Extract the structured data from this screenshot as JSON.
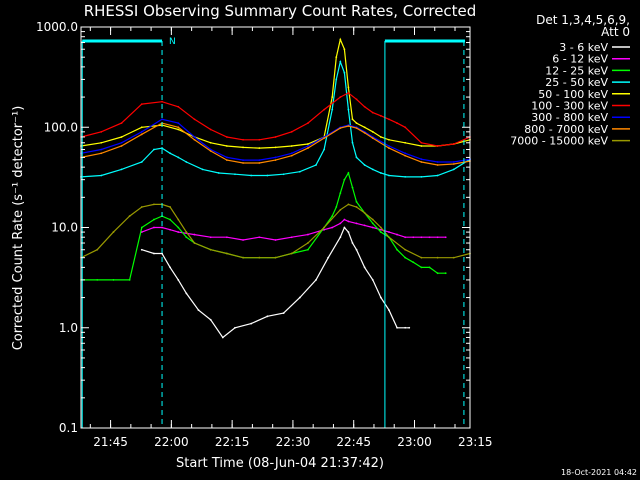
{
  "chart_data": {
    "type": "line",
    "title": "RHESSI Observing Summary Count Rates, Corrected",
    "xlabel": "Start Time (08-Jun-04 21:37:42)",
    "ylabel": "Corrected Count Rate (s⁻¹ detector⁻¹)",
    "y_scale": "log",
    "ylim": [
      0.1,
      1000.0
    ],
    "xlim_minutes": [
      0,
      96
    ],
    "x_ticks": [
      {
        "label": "21:45",
        "value": 7.3
      },
      {
        "label": "22:00",
        "value": 22.3
      },
      {
        "label": "22:15",
        "value": 37.3
      },
      {
        "label": "22:30",
        "value": 52.3
      },
      {
        "label": "22:45",
        "value": 67.3
      },
      {
        "label": "23:00",
        "value": 82.3
      },
      {
        "label": "23:15",
        "value": 97.3
      }
    ],
    "y_ticks": [
      {
        "label": "0.1",
        "value": 0.1
      },
      {
        "label": "1.0",
        "value": 1.0
      },
      {
        "label": "10.0",
        "value": 10.0
      },
      {
        "label": "100.0",
        "value": 100.0
      },
      {
        "label": "1000.0",
        "value": 1000.0
      }
    ],
    "legend_header": [
      "Det 1,3,4,5,6,9,",
      "Att 0"
    ],
    "night_marker": "N",
    "night_interval_minutes": [
      20,
      96
    ],
    "series": [
      {
        "name": "3 - 6 keV",
        "color": "#ffffff",
        "x": [
          15,
          18,
          20,
          22,
          24,
          26,
          29,
          32,
          35,
          38,
          42,
          46,
          50,
          54,
          58,
          61,
          64,
          65,
          66,
          67,
          68,
          70,
          72,
          74,
          76,
          78,
          80,
          81
        ],
        "y": [
          6,
          5.5,
          5.5,
          4,
          3,
          2.2,
          1.5,
          1.2,
          0.8,
          1.0,
          1.1,
          1.3,
          1.4,
          2,
          3,
          5,
          8,
          10,
          9,
          7,
          6,
          4,
          3,
          2,
          1.5,
          1,
          1,
          1
        ]
      },
      {
        "name": "6 - 12 keV",
        "color": "#ff00ff",
        "x": [
          15,
          18,
          20,
          22,
          24,
          28,
          32,
          36,
          40,
          44,
          48,
          52,
          56,
          60,
          62,
          64,
          65,
          66,
          68,
          70,
          72,
          74,
          76,
          78,
          80,
          82,
          84,
          86,
          88,
          90
        ],
        "y": [
          9,
          10,
          10,
          9.5,
          9,
          8.5,
          8,
          8,
          7.5,
          8,
          7.5,
          8,
          8.5,
          9.5,
          10,
          11,
          12,
          11.5,
          11,
          10.5,
          10,
          9.5,
          9,
          8.5,
          8,
          8,
          8,
          8,
          8,
          8
        ]
      },
      {
        "name": "12 - 25 keV",
        "color": "#00ff00",
        "x": [
          0,
          4,
          8,
          12,
          15,
          18,
          20,
          22,
          24,
          26,
          28,
          32,
          36,
          40,
          44,
          48,
          52,
          56,
          60,
          62,
          63,
          64,
          65,
          66,
          67,
          68,
          70,
          72,
          74,
          76,
          78,
          80,
          82,
          84,
          86,
          88,
          90
        ],
        "y": [
          3,
          3,
          3,
          3,
          10,
          12,
          13,
          12,
          10,
          8,
          7,
          6,
          5.5,
          5,
          5,
          5,
          5.5,
          6,
          10,
          13,
          16,
          22,
          30,
          35,
          25,
          18,
          14,
          11,
          9,
          8,
          6,
          5,
          4.5,
          4,
          4,
          3.5,
          3.5
        ]
      },
      {
        "name": "25 - 50 keV",
        "color": "#00ffff",
        "x": [
          0,
          5,
          10,
          15,
          18,
          20,
          22,
          24,
          26,
          30,
          34,
          38,
          42,
          46,
          50,
          54,
          58,
          60,
          62,
          63,
          64,
          65,
          66,
          67,
          68,
          70,
          72,
          74,
          76,
          80,
          84,
          88,
          92,
          96
        ],
        "y": [
          32,
          33,
          38,
          45,
          60,
          62,
          55,
          50,
          45,
          38,
          35,
          34,
          33,
          33,
          34,
          36,
          42,
          60,
          150,
          300,
          450,
          350,
          150,
          70,
          50,
          42,
          38,
          35,
          33,
          32,
          32,
          33,
          38,
          48
        ]
      },
      {
        "name": "50 - 100 keV",
        "color": "#ffff00",
        "x": [
          0,
          5,
          10,
          15,
          20,
          24,
          28,
          32,
          36,
          40,
          44,
          48,
          52,
          56,
          60,
          62,
          63,
          64,
          65,
          66,
          67,
          68,
          70,
          72,
          74,
          76,
          80,
          84,
          88,
          92,
          96
        ],
        "y": [
          65,
          70,
          80,
          100,
          105,
          95,
          80,
          70,
          65,
          63,
          62,
          63,
          65,
          68,
          80,
          200,
          500,
          750,
          600,
          250,
          120,
          110,
          100,
          90,
          80,
          75,
          70,
          65,
          65,
          68,
          75
        ]
      },
      {
        "name": "100 - 300 keV",
        "color": "#ff0000",
        "x": [
          0,
          5,
          10,
          15,
          20,
          24,
          28,
          32,
          36,
          40,
          44,
          48,
          52,
          56,
          60,
          64,
          66,
          68,
          70,
          72,
          74,
          76,
          78,
          80,
          84,
          88,
          92,
          96
        ],
        "y": [
          80,
          90,
          110,
          170,
          180,
          160,
          120,
          95,
          80,
          75,
          75,
          80,
          90,
          110,
          150,
          200,
          220,
          190,
          160,
          140,
          130,
          120,
          110,
          100,
          70,
          65,
          68,
          80
        ]
      },
      {
        "name": "300 - 800 keV",
        "color": "#0000ff",
        "x": [
          0,
          5,
          10,
          15,
          20,
          24,
          28,
          32,
          36,
          40,
          44,
          48,
          52,
          56,
          60,
          64,
          66,
          68,
          70,
          72,
          76,
          80,
          84,
          88,
          92,
          96
        ],
        "y": [
          55,
          60,
          70,
          90,
          120,
          110,
          80,
          60,
          50,
          47,
          47,
          50,
          55,
          65,
          80,
          100,
          105,
          100,
          90,
          80,
          65,
          55,
          48,
          45,
          45,
          48
        ]
      },
      {
        "name": "800 - 7000 keV",
        "color": "#ff8800",
        "x": [
          0,
          5,
          10,
          15,
          20,
          24,
          28,
          32,
          36,
          40,
          44,
          48,
          52,
          56,
          60,
          64,
          66,
          68,
          70,
          72,
          76,
          80,
          84,
          88,
          92,
          96
        ],
        "y": [
          50,
          55,
          65,
          85,
          110,
          100,
          75,
          58,
          47,
          44,
          44,
          47,
          52,
          62,
          78,
          98,
          103,
          98,
          88,
          78,
          62,
          52,
          45,
          42,
          43,
          46
        ]
      },
      {
        "name": "7000 - 15000 keV",
        "color": "#999900",
        "x": [
          0,
          4,
          8,
          12,
          15,
          18,
          20,
          22,
          24,
          26,
          28,
          32,
          36,
          40,
          44,
          48,
          52,
          56,
          60,
          64,
          66,
          68,
          70,
          72,
          74,
          76,
          80,
          84,
          88,
          92,
          96
        ],
        "y": [
          5,
          6,
          9,
          13,
          16,
          17,
          17,
          16,
          12,
          9,
          7,
          6,
          5.5,
          5,
          5,
          5,
          5.5,
          7,
          10,
          15,
          17,
          16,
          14,
          12,
          10,
          8,
          6,
          5,
          5,
          5,
          5.5
        ]
      }
    ]
  },
  "footer": {
    "timestamp": "18-Oct-2021 04:42"
  }
}
